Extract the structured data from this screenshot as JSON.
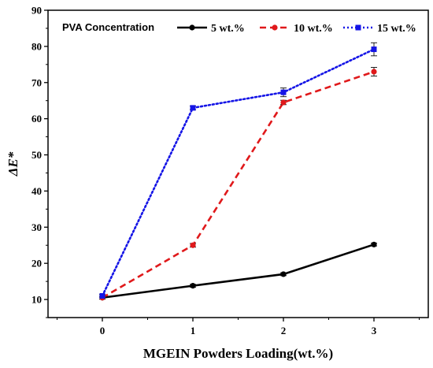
{
  "chart_data": {
    "type": "line",
    "xlabel": "MGEIN Powders Loading(wt.%)",
    "ylabel": "ΔE*",
    "x": [
      0,
      1,
      2,
      3
    ],
    "xlim": [
      -0.6,
      3.6
    ],
    "ylim": [
      5,
      90
    ],
    "xticks": [
      0,
      1,
      2,
      3
    ],
    "yticks": [
      10,
      20,
      30,
      40,
      50,
      60,
      70,
      80,
      90
    ],
    "grid": false,
    "legend": {
      "title": "PVA Concentration",
      "position": "top"
    },
    "series": [
      {
        "name": "5 wt.%",
        "values": [
          10.5,
          13.8,
          17.0,
          25.2
        ],
        "errors": [
          0.4,
          0.4,
          0.4,
          0.4
        ],
        "color": "#000000",
        "line_style": "solid",
        "marker": "circle"
      },
      {
        "name": "10 wt.%",
        "values": [
          10.5,
          25.0,
          64.5,
          73.0
        ],
        "errors": [
          0.4,
          0.5,
          0.6,
          1.2
        ],
        "color": "#e0191b",
        "line_style": "dashed",
        "marker": "circle"
      },
      {
        "name": "15 wt.%",
        "values": [
          11.0,
          63.0,
          67.3,
          79.2
        ],
        "errors": [
          0.4,
          0.5,
          1.2,
          1.8
        ],
        "color": "#1414e6",
        "line_style": "dotted",
        "marker": "square"
      }
    ]
  }
}
